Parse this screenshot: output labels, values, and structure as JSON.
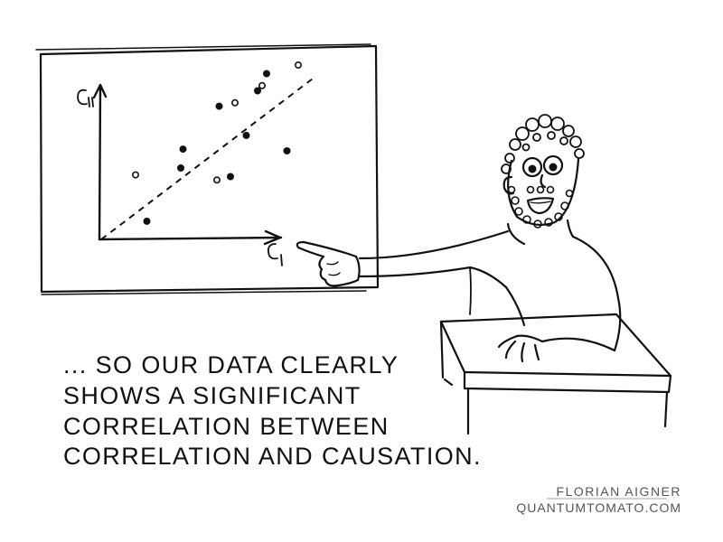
{
  "chart": {
    "y_axis_label": "C_II",
    "x_axis_label": "C_I",
    "points": [
      [
        0.16,
        0.36
      ],
      [
        0.36,
        0.4
      ],
      [
        0.37,
        0.51
      ],
      [
        0.52,
        0.33
      ],
      [
        0.58,
        0.35
      ],
      [
        0.53,
        0.76
      ],
      [
        0.6,
        0.78
      ],
      [
        0.65,
        0.59
      ],
      [
        0.7,
        0.85
      ],
      [
        0.72,
        0.88
      ],
      [
        0.74,
        0.95
      ],
      [
        0.83,
        0.5
      ],
      [
        0.88,
        1.0
      ],
      [
        0.21,
        0.09
      ]
    ]
  },
  "caption": [
    "... SO OUR DATA CLEARLY",
    "SHOWS A SIGNIFICANT",
    "CORRELATION BETWEEN",
    "CORRELATION AND CAUSATION."
  ],
  "credit": {
    "name": "FLORIAN AIGNER",
    "site": "QUANTUMTOMATO.COM"
  },
  "colors": {
    "ink": "#111111",
    "credit": "#555555",
    "paper": "#ffffff"
  }
}
